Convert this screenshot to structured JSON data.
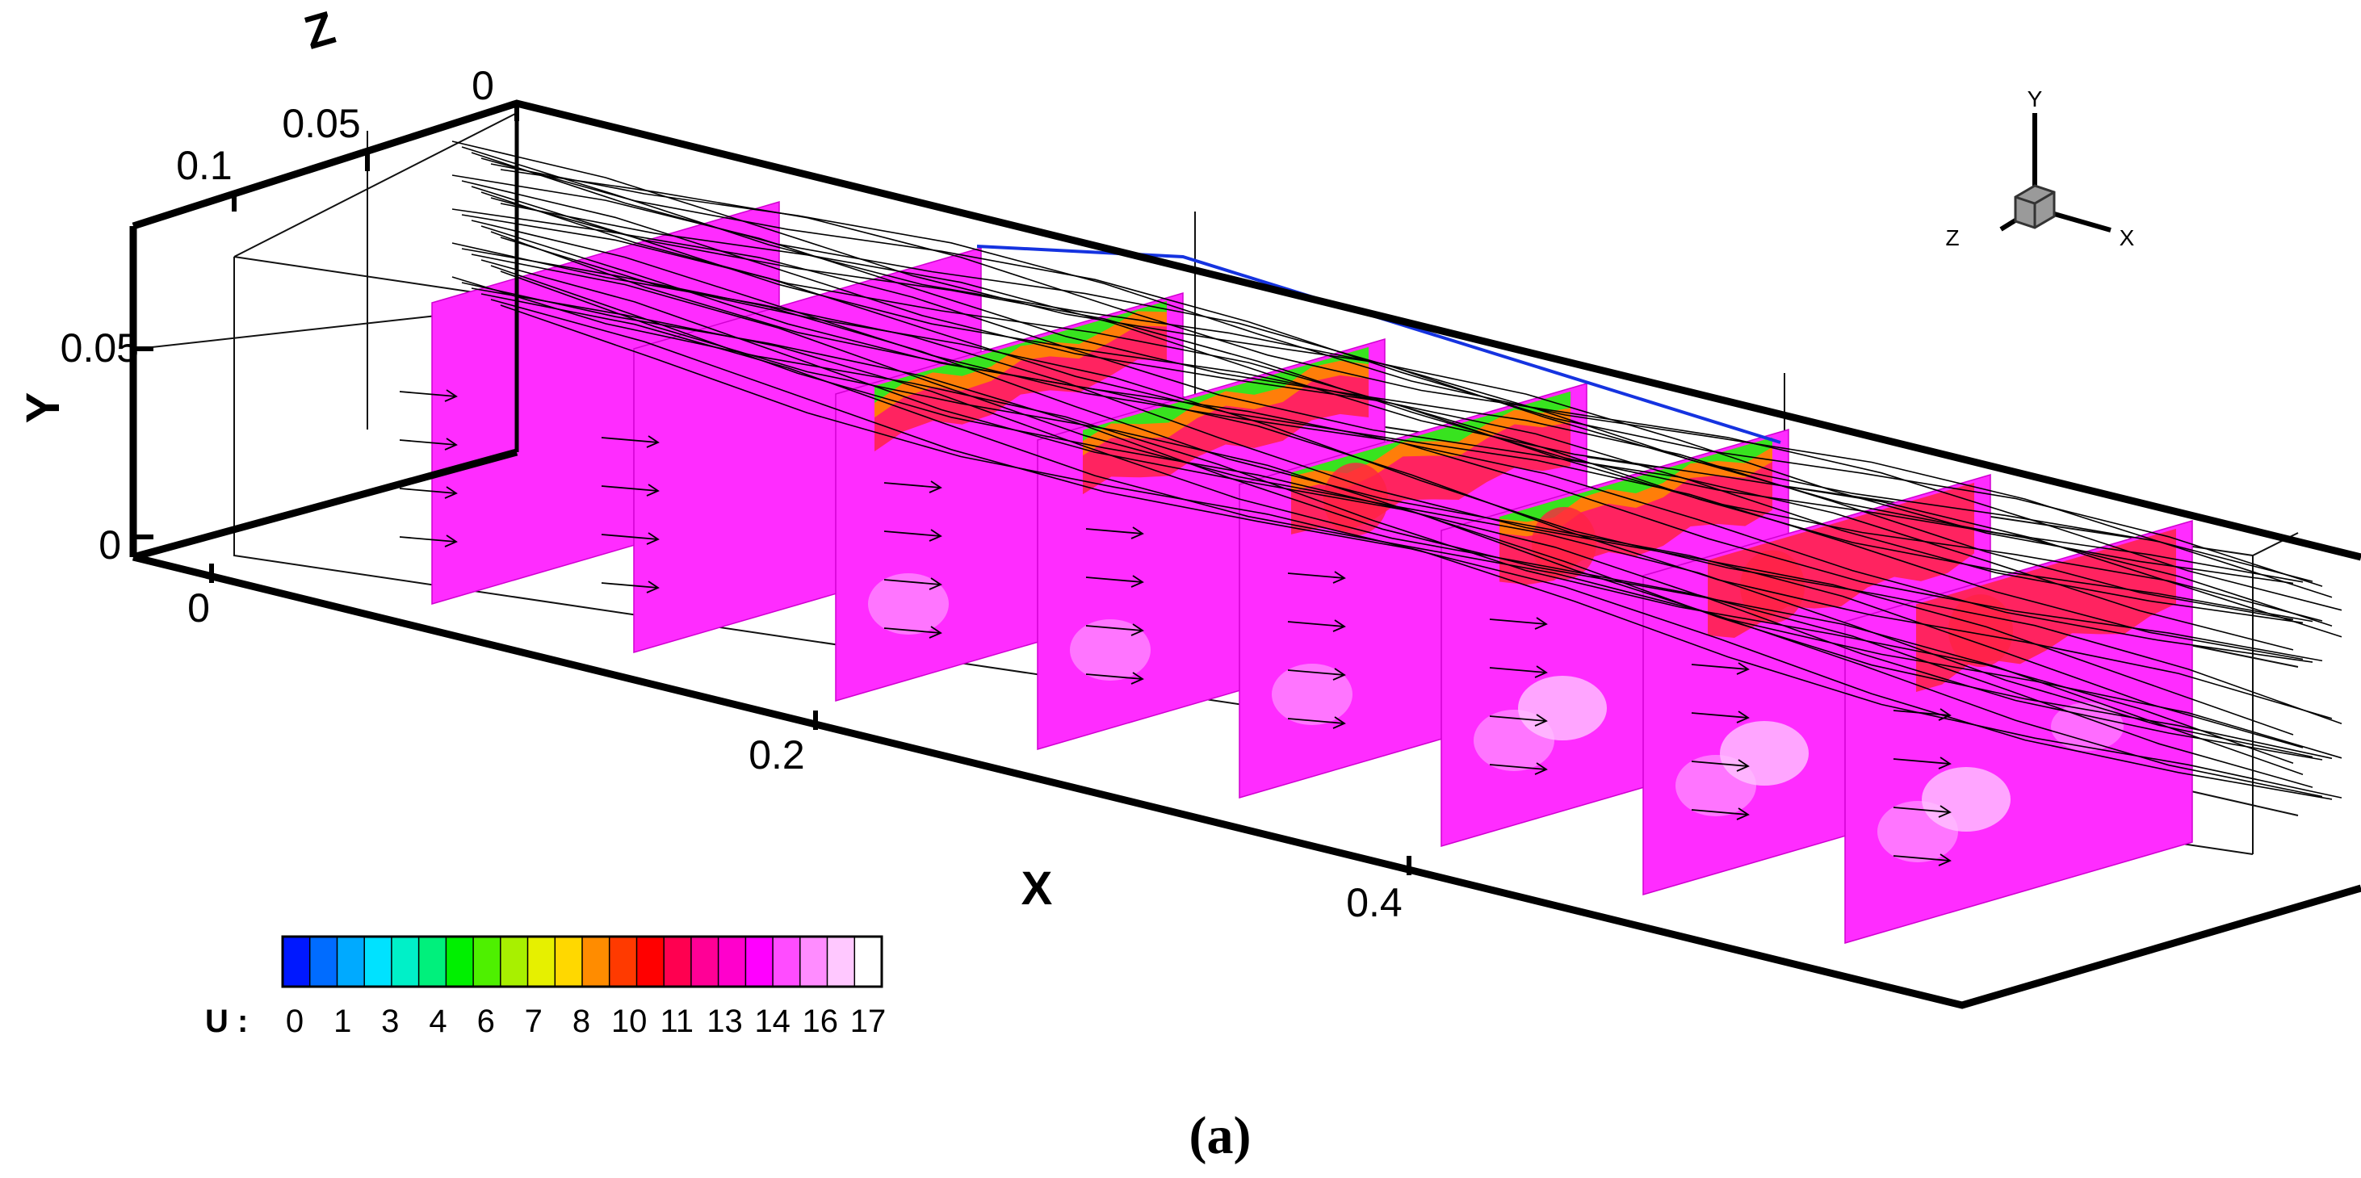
{
  "figure": {
    "caption": "(a)",
    "axes": {
      "x": {
        "label": "X",
        "ticks": [
          "0",
          "0.2",
          "0.4"
        ]
      },
      "y": {
        "label": "Y",
        "ticks": [
          "0.05",
          "0"
        ]
      },
      "z": {
        "label": "Z",
        "ticks": [
          "0",
          "0.05",
          "0.1"
        ]
      }
    },
    "orientation_triad": {
      "labels": [
        "Y",
        "Z",
        "X"
      ]
    },
    "colorbar": {
      "variable_label": "U :",
      "tick_labels": [
        "0",
        "1",
        "3",
        "4",
        "6",
        "7",
        "8",
        "10",
        "11",
        "13",
        "14",
        "16",
        "17"
      ],
      "colors": [
        "#0018ff",
        "#006cff",
        "#00aaff",
        "#00e2ff",
        "#00f0c8",
        "#00f07c",
        "#00f000",
        "#4ef000",
        "#a8f000",
        "#e6f000",
        "#ffd800",
        "#ff8c00",
        "#ff3a00",
        "#ff0000",
        "#ff0050",
        "#ff0096",
        "#ff00cc",
        "#ff00ff",
        "#ff4cff",
        "#ff8cff",
        "#ffc8ff",
        "#ffffff"
      ]
    },
    "slice_colors": {
      "base": "#ff2cff",
      "light": "#ff88ff",
      "pale": "#ffc4ff",
      "hot": "#ff2244",
      "warm": "#ff8800",
      "cool": "#22ee22"
    }
  }
}
